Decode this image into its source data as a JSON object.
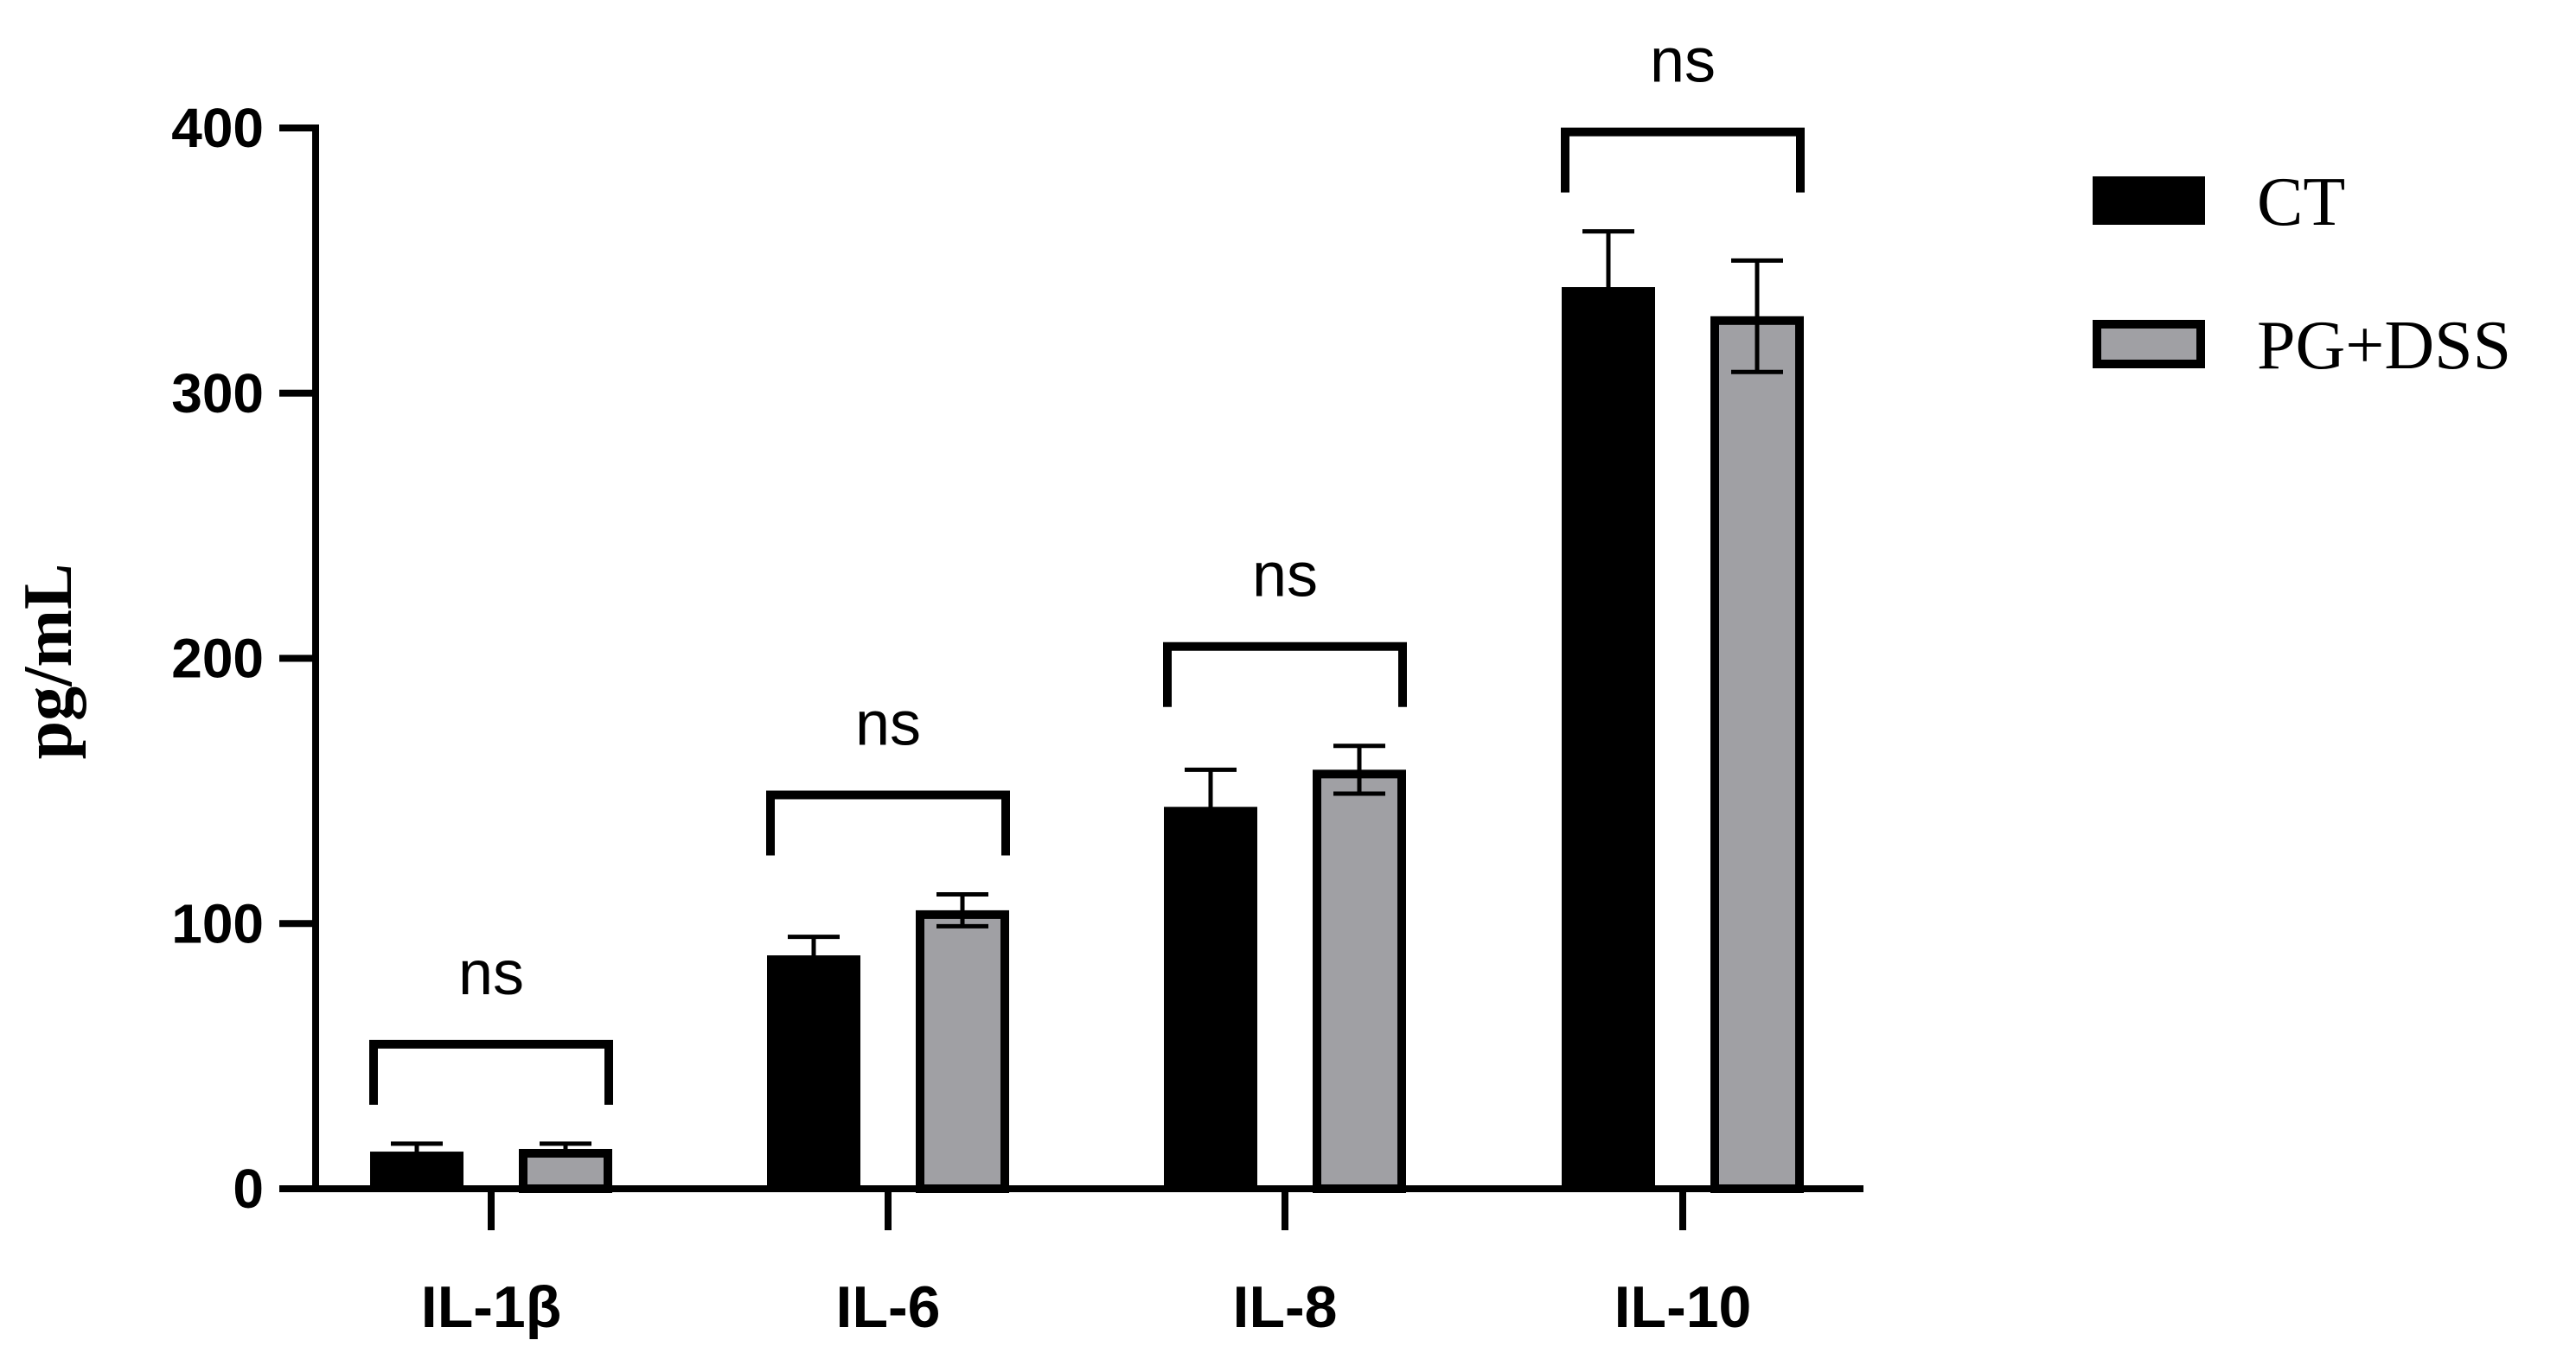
{
  "chart_data": {
    "type": "bar",
    "title": "",
    "xlabel": "",
    "ylabel": "pg/mL",
    "ylim": [
      0,
      400
    ],
    "yticks": [
      0,
      100,
      200,
      300,
      400
    ],
    "categories": [
      "IL-1β",
      "IL-6",
      "IL-8",
      "IL-10"
    ],
    "series": [
      {
        "name": "CT",
        "color": "#000000",
        "values": [
          14,
          88,
          144,
          340
        ],
        "errors": [
          3,
          7,
          14,
          21
        ]
      },
      {
        "name": "PG+DSS",
        "color": "#a0a0a4",
        "values": [
          15,
          105,
          158,
          329
        ],
        "errors": [
          2,
          6,
          9,
          21
        ]
      }
    ],
    "significance": [
      "ns",
      "ns",
      "ns",
      "ns"
    ],
    "legend_position": "top-right",
    "grid": false
  }
}
